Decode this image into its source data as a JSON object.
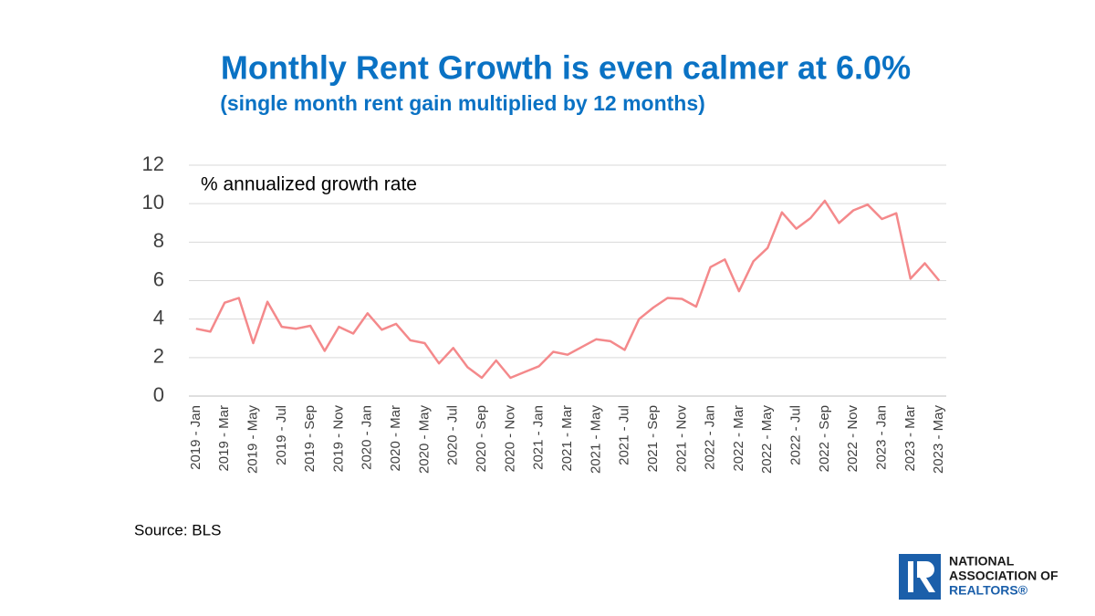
{
  "chart_data": {
    "type": "line",
    "title": "Monthly Rent Growth is even calmer at 6.0%",
    "subtitle": "(single month rent gain multiplied by 12 months)",
    "annotation": "% annualized growth rate",
    "source": "Source: BLS",
    "logo": [
      "NATIONAL",
      "ASSOCIATION OF",
      "REALTORS®"
    ],
    "categories": [
      "2019 - Jan",
      null,
      "2019 - Mar",
      null,
      "2019 - May",
      null,
      "2019 - Jul",
      null,
      "2019 - Sep",
      null,
      "2019 - Nov",
      null,
      "2020 - Jan",
      null,
      "2020 - Mar",
      null,
      "2020 - May",
      null,
      "2020 - Jul",
      null,
      "2020 - Sep",
      null,
      "2020 - Nov",
      null,
      "2021 - Jan",
      null,
      "2021 - Mar",
      null,
      "2021 - May",
      null,
      "2021 - Jul",
      null,
      "2021 - Sep",
      null,
      "2021 - Nov",
      null,
      "2022 - Jan",
      null,
      "2022 - Mar",
      null,
      "2022 - May",
      null,
      "2022 - Jul",
      null,
      "2022 - Sep",
      null,
      "2022 - Nov",
      null,
      "2023 - Jan",
      null,
      "2023 - Mar",
      null,
      "2023 - May"
    ],
    "series": [
      {
        "color": "#f4898b",
        "values": [
          3.5,
          3.35,
          4.85,
          5.1,
          2.75,
          4.9,
          3.6,
          3.5,
          3.65,
          2.35,
          3.6,
          3.25,
          4.3,
          3.45,
          3.75,
          2.9,
          2.75,
          1.7,
          2.5,
          1.5,
          0.95,
          1.85,
          0.95,
          1.25,
          1.55,
          2.3,
          2.15,
          2.55,
          2.95,
          2.85,
          2.4,
          4.0,
          4.6,
          5.1,
          5.05,
          4.65,
          6.7,
          7.1,
          5.45,
          7.0,
          7.7,
          9.55,
          8.7,
          9.25,
          10.15,
          9.0,
          9.65,
          9.95,
          9.2,
          9.5,
          6.1,
          6.9,
          6.0
        ]
      }
    ],
    "ylim": [
      0,
      12
    ],
    "yticks": [
      0,
      2,
      4,
      6,
      8,
      10,
      12
    ],
    "grid": true
  }
}
